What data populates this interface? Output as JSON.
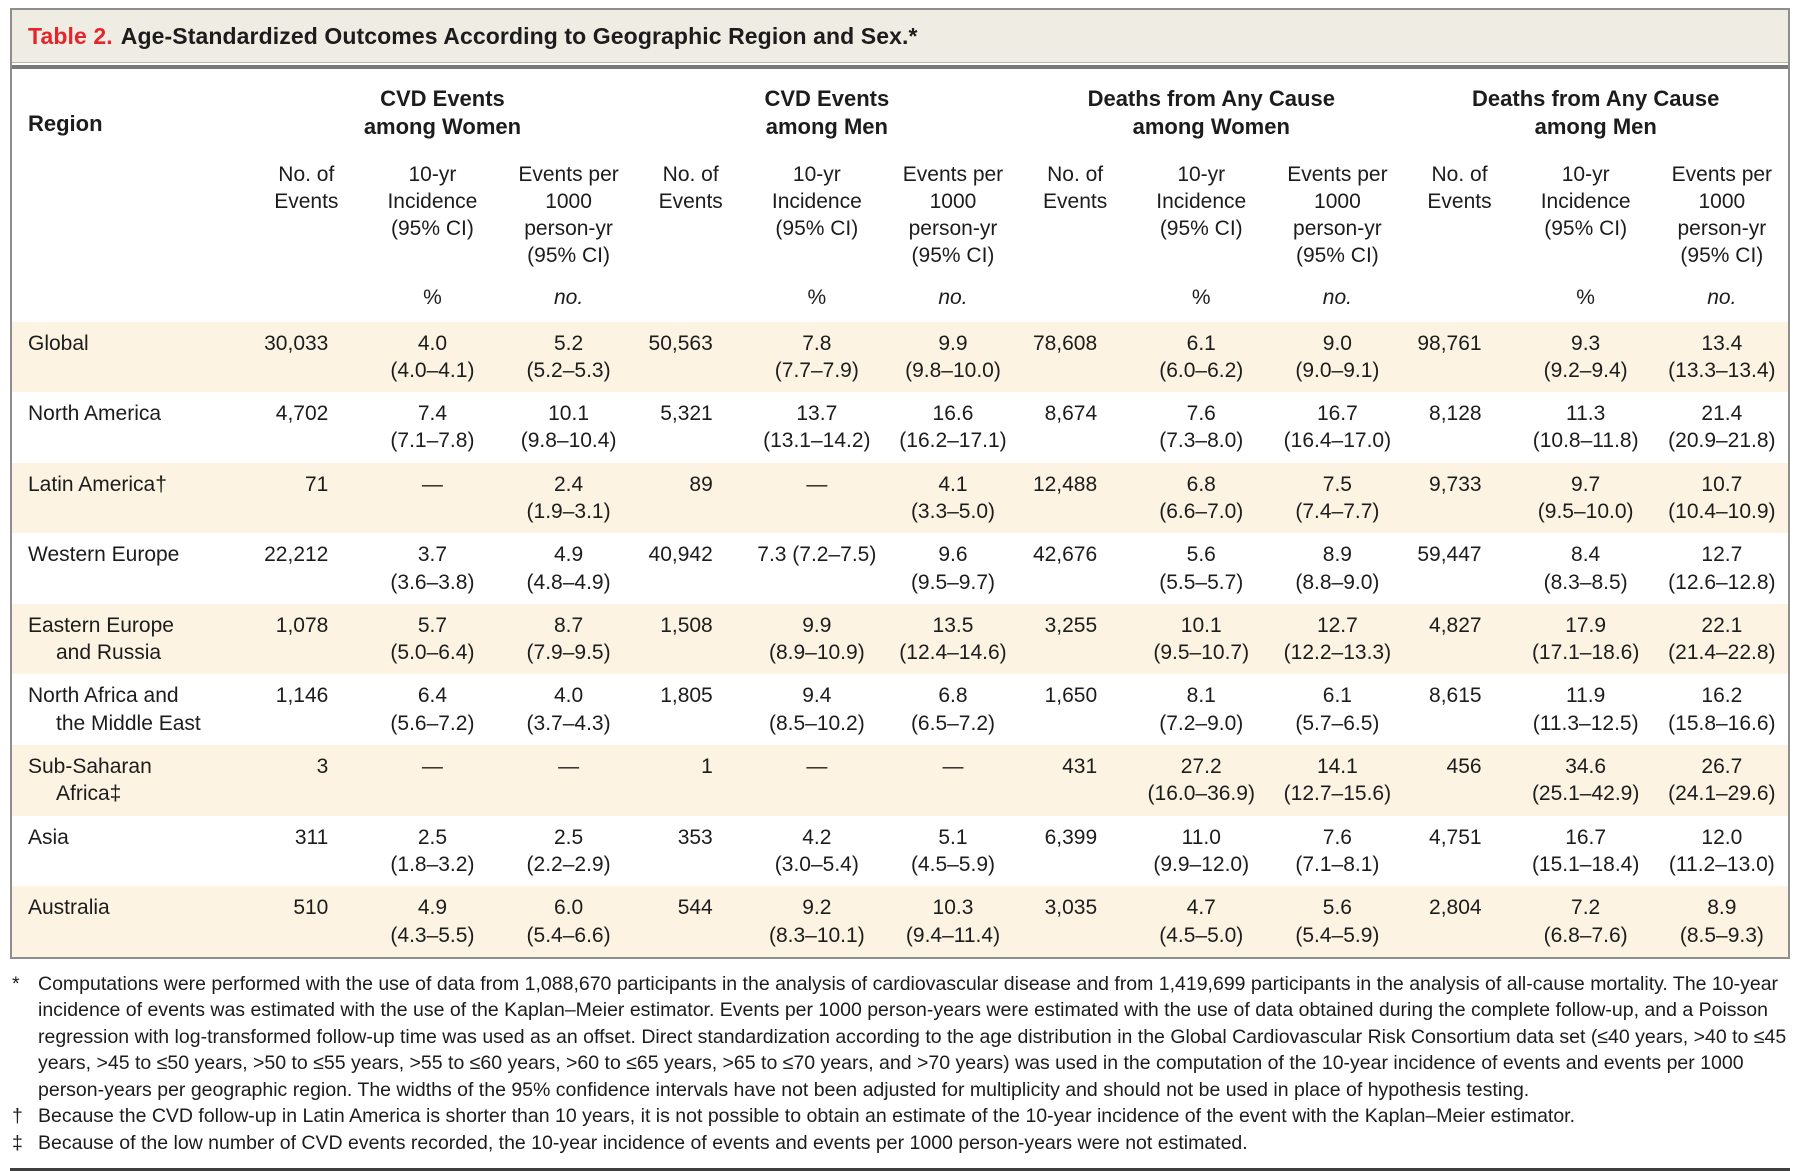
{
  "title": {
    "label": "Table 2.",
    "text": "Age-Standardized Outcomes According to Geographic Region and Sex.*"
  },
  "columns": {
    "region_header": "Region",
    "groups": [
      {
        "label": "CVD Events\namong Women"
      },
      {
        "label": "CVD Events\namong Men"
      },
      {
        "label": "Deaths from Any Cause\namong Women"
      },
      {
        "label": "Deaths from Any Cause\namong Men"
      }
    ],
    "subheaders": [
      "No. of\nEvents",
      "10-yr\nIncidence\n(95% CI)",
      "Events per\n1000\nperson-yr\n(95% CI)"
    ],
    "units": {
      "pct": "%",
      "no": "no."
    }
  },
  "rows": [
    {
      "region": "Global",
      "cells": [
        "30,033",
        "4.0\n(4.0–4.1)",
        "5.2\n(5.2–5.3)",
        "50,563",
        "7.8\n(7.7–7.9)",
        "9.9\n(9.8–10.0)",
        "78,608",
        "6.1\n(6.0–6.2)",
        "9.0\n(9.0–9.1)",
        "98,761",
        "9.3\n(9.2–9.4)",
        "13.4\n(13.3–13.4)"
      ]
    },
    {
      "region": "North America",
      "cells": [
        "4,702",
        "7.4\n(7.1–7.8)",
        "10.1\n(9.8–10.4)",
        "5,321",
        "13.7\n(13.1–14.2)",
        "16.6\n(16.2–17.1)",
        "8,674",
        "7.6\n(7.3–8.0)",
        "16.7\n(16.4–17.0)",
        "8,128",
        "11.3\n(10.8–11.8)",
        "21.4\n(20.9–21.8)"
      ]
    },
    {
      "region": "Latin America†",
      "cells": [
        "71",
        "—",
        "2.4\n(1.9–3.1)",
        "89",
        "—",
        "4.1\n(3.3–5.0)",
        "12,488",
        "6.8\n(6.6–7.0)",
        "7.5\n(7.4–7.7)",
        "9,733",
        "9.7\n(9.5–10.0)",
        "10.7\n(10.4–10.9)"
      ]
    },
    {
      "region": "Western Europe",
      "cells": [
        "22,212",
        "3.7\n(3.6–3.8)",
        "4.9\n(4.8–4.9)",
        "40,942",
        "7.3 (7.2–7.5)",
        "9.6\n(9.5–9.7)",
        "42,676",
        "5.6\n(5.5–5.7)",
        "8.9\n(8.8–9.0)",
        "59,447",
        "8.4\n(8.3–8.5)",
        "12.7\n(12.6–12.8)"
      ]
    },
    {
      "region": "Eastern Europe",
      "region2": "and Russia",
      "cells": [
        "1,078",
        "5.7\n(5.0–6.4)",
        "8.7\n(7.9–9.5)",
        "1,508",
        "9.9\n(8.9–10.9)",
        "13.5\n(12.4–14.6)",
        "3,255",
        "10.1\n(9.5–10.7)",
        "12.7\n(12.2–13.3)",
        "4,827",
        "17.9\n(17.1–18.6)",
        "22.1\n(21.4–22.8)"
      ]
    },
    {
      "region": "North Africa and",
      "region2": "the Middle East",
      "cells": [
        "1,146",
        "6.4\n(5.6–7.2)",
        "4.0\n(3.7–4.3)",
        "1,805",
        "9.4\n(8.5–10.2)",
        "6.8\n(6.5–7.2)",
        "1,650",
        "8.1\n(7.2–9.0)",
        "6.1\n(5.7–6.5)",
        "8,615",
        "11.9\n(11.3–12.5)",
        "16.2\n(15.8–16.6)"
      ]
    },
    {
      "region": "Sub-Saharan",
      "region2": "Africa‡",
      "cells": [
        "3",
        "—",
        "—",
        "1",
        "—",
        "—",
        "431",
        "27.2\n(16.0–36.9)",
        "14.1\n(12.7–15.6)",
        "456",
        "34.6\n(25.1–42.9)",
        "26.7\n(24.1–29.6)"
      ]
    },
    {
      "region": "Asia",
      "cells": [
        "311",
        "2.5\n(1.8–3.2)",
        "2.5\n(2.2–2.9)",
        "353",
        "4.2\n(3.0–5.4)",
        "5.1\n(4.5–5.9)",
        "6,399",
        "11.0\n(9.9–12.0)",
        "7.6\n(7.1–8.1)",
        "4,751",
        "16.7\n(15.1–18.4)",
        "12.0\n(11.2–13.0)"
      ]
    },
    {
      "region": "Australia",
      "cells": [
        "510",
        "4.9\n(4.3–5.5)",
        "6.0\n(5.4–6.6)",
        "544",
        "9.2\n(8.3–10.1)",
        "10.3\n(9.4–11.4)",
        "3,035",
        "4.7\n(4.5–5.0)",
        "5.6\n(5.4–5.9)",
        "2,804",
        "7.2\n(6.8–7.6)",
        "8.9\n(8.5–9.3)"
      ]
    }
  ],
  "footnotes": [
    {
      "marker": "*",
      "text": "Computations were performed with the use of data from 1,088,670 participants in the analysis of cardiovascular disease and from 1,419,699 participants in the analysis of all-cause mortality. The 10-year incidence of events was estimated with the use of the Kaplan–Meier estimator. Events per 1000 person-years were estimated with the use of data obtained during the complete follow-up, and a Poisson regression with log-transformed follow-up time was used as an offset. Direct standardization according to the age distribution in the Global Cardiovascular Risk Consortium data set (≤40 years, >40 to ≤45 years, >45 to ≤50 years, >50 to ≤55 years, >55 to ≤60 years, >60 to ≤65 years, >65 to ≤70 years, and >70 years) was used in the computation of the 10-year incidence of events and events per 1000 person-years per geographic region. The widths of the 95% confidence intervals have not been adjusted for multiplicity and should not be used in place of hypothesis testing."
    },
    {
      "marker": "†",
      "text": "Because the CVD follow-up in Latin America is shorter than 10 years, it is not possible to obtain an estimate of the 10-year incidence of the event with the Kaplan–Meier estimator."
    },
    {
      "marker": "‡",
      "text": "Because of the low number of CVD events recorded, the 10-year incidence of events and events per 1000 person-years were not estimated."
    }
  ],
  "colors": {
    "accent_red": "#e4262c",
    "stripe": "#fcf3e2",
    "title_band": "#efece3",
    "frame_gray": "#8e8e8e",
    "text": "#1c1c1c"
  }
}
